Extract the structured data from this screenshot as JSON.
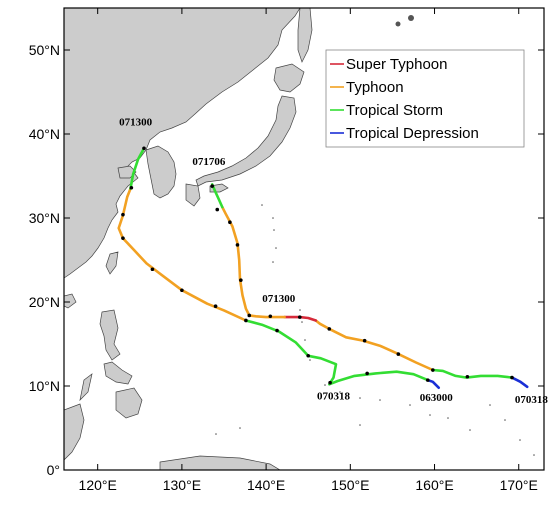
{
  "map": {
    "lon_range": [
      116,
      173
    ],
    "lat_range": [
      0,
      55
    ],
    "lon_ticks": [
      "120°E",
      "130°E",
      "140°E",
      "150°E",
      "160°E",
      "170°E"
    ],
    "lat_ticks": [
      "0°",
      "10°N",
      "20°N",
      "30°N",
      "40°N",
      "50°N"
    ],
    "land_color": "#cccccc",
    "coast_color": "#444444",
    "dot_color": "#000000"
  },
  "legend": {
    "items": [
      {
        "label": "Super Typhoon",
        "color": "#d62a3a"
      },
      {
        "label": "Typhoon",
        "color": "#f2a122"
      },
      {
        "label": "Tropical Storm",
        "color": "#33dd33"
      },
      {
        "label": "Tropical Depression",
        "color": "#1a2fd6"
      }
    ]
  },
  "tracks": [
    {
      "segments": [
        {
          "category": "Tropical Depression",
          "color": "#1a2fd6",
          "points": [
            [
              160.5,
              9.8
            ],
            [
              159.8,
              10.5
            ],
            [
              159.2,
              10.7
            ]
          ]
        },
        {
          "category": "Tropical Storm",
          "color": "#33dd33",
          "points": [
            [
              159.2,
              10.7
            ],
            [
              157.5,
              11.4
            ],
            [
              155.5,
              11.7
            ],
            [
              153.0,
              11.5
            ],
            [
              150.5,
              11.2
            ],
            [
              148.5,
              10.6
            ],
            [
              147.5,
              10.2
            ],
            [
              148.0,
              11.0
            ],
            [
              148.3,
              12.6
            ],
            [
              146.5,
              13.3
            ],
            [
              145.0,
              13.6
            ],
            [
              143.5,
              15.2
            ],
            [
              141.5,
              16.5
            ],
            [
              139.5,
              17.3
            ],
            [
              137.6,
              17.8
            ]
          ]
        },
        {
          "category": "Typhoon",
          "color": "#f2a122",
          "points": [
            [
              137.6,
              17.8
            ],
            [
              135.0,
              19.0
            ],
            [
              133.0,
              19.8
            ],
            [
              130.0,
              21.4
            ],
            [
              127.5,
              23.3
            ],
            [
              125.8,
              24.6
            ],
            [
              124.3,
              26.2
            ],
            [
              123.0,
              27.6
            ],
            [
              122.5,
              28.8
            ],
            [
              123.0,
              30.3
            ],
            [
              123.5,
              32.5
            ],
            [
              123.9,
              33.5
            ]
          ]
        },
        {
          "category": "Tropical Storm",
          "color": "#33dd33",
          "points": [
            [
              123.9,
              33.5
            ],
            [
              124.2,
              35.2
            ],
            [
              124.8,
              37.0
            ],
            [
              125.5,
              38.3
            ]
          ]
        }
      ],
      "dots": [
        [
          159.2,
          10.7
        ],
        [
          152.0,
          11.5
        ],
        [
          147.6,
          10.4
        ],
        [
          145.0,
          13.6
        ],
        [
          141.3,
          16.6
        ],
        [
          137.6,
          17.8
        ],
        [
          134.0,
          19.5
        ],
        [
          130.0,
          21.4
        ],
        [
          126.5,
          23.9
        ],
        [
          123.0,
          27.6
        ],
        [
          123.0,
          30.4
        ],
        [
          124.0,
          33.6
        ],
        [
          125.5,
          38.3
        ]
      ],
      "start_label": {
        "text": "063000",
        "lon": 160.2,
        "lat": 8.2
      },
      "labels": [
        {
          "text": "070318",
          "lon": 148.0,
          "lat": 8.4
        },
        {
          "text": "071300",
          "lon": 124.5,
          "lat": 41.0
        }
      ]
    },
    {
      "segments": [
        {
          "category": "Tropical Depression",
          "color": "#1a2fd6",
          "points": [
            [
              171.0,
              9.9
            ],
            [
              170.2,
              10.5
            ],
            [
              169.2,
              11.0
            ]
          ]
        },
        {
          "category": "Tropical Storm",
          "color": "#33dd33",
          "points": [
            [
              169.2,
              11.0
            ],
            [
              167.5,
              11.2
            ],
            [
              165.5,
              11.2
            ],
            [
              163.8,
              11.0
            ],
            [
              162.5,
              11.2
            ],
            [
              161.0,
              11.8
            ],
            [
              159.8,
              11.9
            ]
          ]
        },
        {
          "category": "Typhoon",
          "color": "#f2a122",
          "points": [
            [
              159.8,
              11.9
            ],
            [
              157.8,
              12.8
            ],
            [
              155.5,
              13.9
            ],
            [
              153.5,
              14.8
            ],
            [
              151.5,
              15.4
            ],
            [
              149.5,
              15.8
            ],
            [
              147.5,
              16.8
            ],
            [
              146.4,
              17.4
            ],
            [
              145.9,
              17.8
            ]
          ]
        },
        {
          "category": "Super Typhoon",
          "color": "#d62a3a",
          "points": [
            [
              145.9,
              17.8
            ],
            [
              145.0,
              18.1
            ],
            [
              144.0,
              18.2
            ],
            [
              143.0,
              18.2
            ],
            [
              142.2,
              18.2
            ]
          ]
        },
        {
          "category": "Typhoon",
          "color": "#f2a122",
          "points": [
            [
              142.2,
              18.2
            ],
            [
              140.0,
              18.2
            ],
            [
              138.8,
              18.3
            ],
            [
              138.0,
              18.4
            ],
            [
              137.6,
              19.2
            ],
            [
              137.2,
              20.8
            ],
            [
              136.9,
              22.7
            ],
            [
              136.8,
              25.0
            ],
            [
              136.6,
              27.0
            ],
            [
              136.0,
              29.0
            ],
            [
              135.2,
              30.5
            ],
            [
              134.8,
              31.3
            ]
          ]
        },
        {
          "category": "Tropical Storm",
          "color": "#33dd33",
          "points": [
            [
              134.8,
              31.3
            ],
            [
              134.4,
              32.2
            ],
            [
              133.9,
              33.3
            ],
            [
              133.6,
              34.0
            ]
          ]
        }
      ],
      "dots": [
        [
          169.2,
          11.0
        ],
        [
          163.9,
          11.1
        ],
        [
          159.8,
          11.9
        ],
        [
          155.7,
          13.8
        ],
        [
          151.7,
          15.4
        ],
        [
          147.5,
          16.8
        ],
        [
          144.0,
          18.2
        ],
        [
          140.5,
          18.3
        ],
        [
          138.0,
          18.4
        ],
        [
          137.0,
          22.6
        ],
        [
          136.6,
          26.8
        ],
        [
          135.7,
          29.5
        ],
        [
          134.2,
          31.0
        ],
        [
          133.6,
          33.8
        ]
      ],
      "start_label": {
        "text": "070318",
        "lon": 171.5,
        "lat": 8.0
      },
      "labels": [
        {
          "text": "071300",
          "lon": 141.5,
          "lat": 20.0
        },
        {
          "text": "071706",
          "lon": 133.2,
          "lat": 36.3
        }
      ]
    }
  ]
}
